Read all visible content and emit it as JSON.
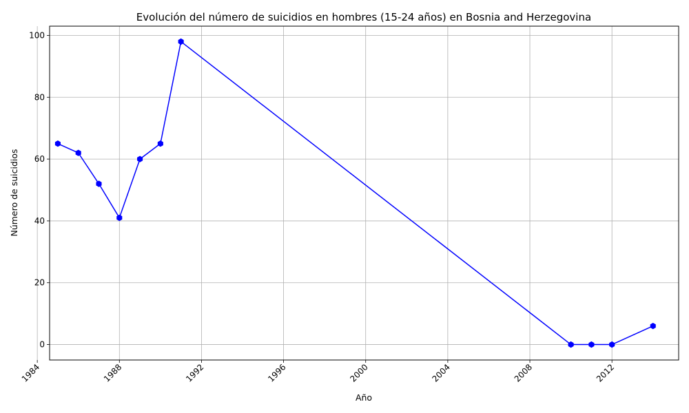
{
  "chart_data": {
    "type": "line",
    "title": "Evolución del número de suicidios en hombres (15-24 años) en Bosnia and Herzegovina",
    "xlabel": "Año",
    "ylabel": "Número de suicidios",
    "xlim": [
      1984.6,
      2015.25
    ],
    "ylim": [
      -5,
      103
    ],
    "x_ticks": [
      1984,
      1988,
      1992,
      1996,
      2000,
      2004,
      2008,
      2012
    ],
    "y_ticks": [
      0,
      20,
      40,
      60,
      80,
      100
    ],
    "grid": true,
    "line_color": "#0000ff",
    "series": [
      {
        "x": [
          1985,
          1986,
          1987,
          1988,
          1989,
          1990,
          1991,
          2010,
          2011,
          2012,
          2014
        ],
        "values": [
          65,
          62,
          52,
          41,
          60,
          65,
          98,
          0,
          0,
          0,
          6
        ]
      }
    ]
  }
}
